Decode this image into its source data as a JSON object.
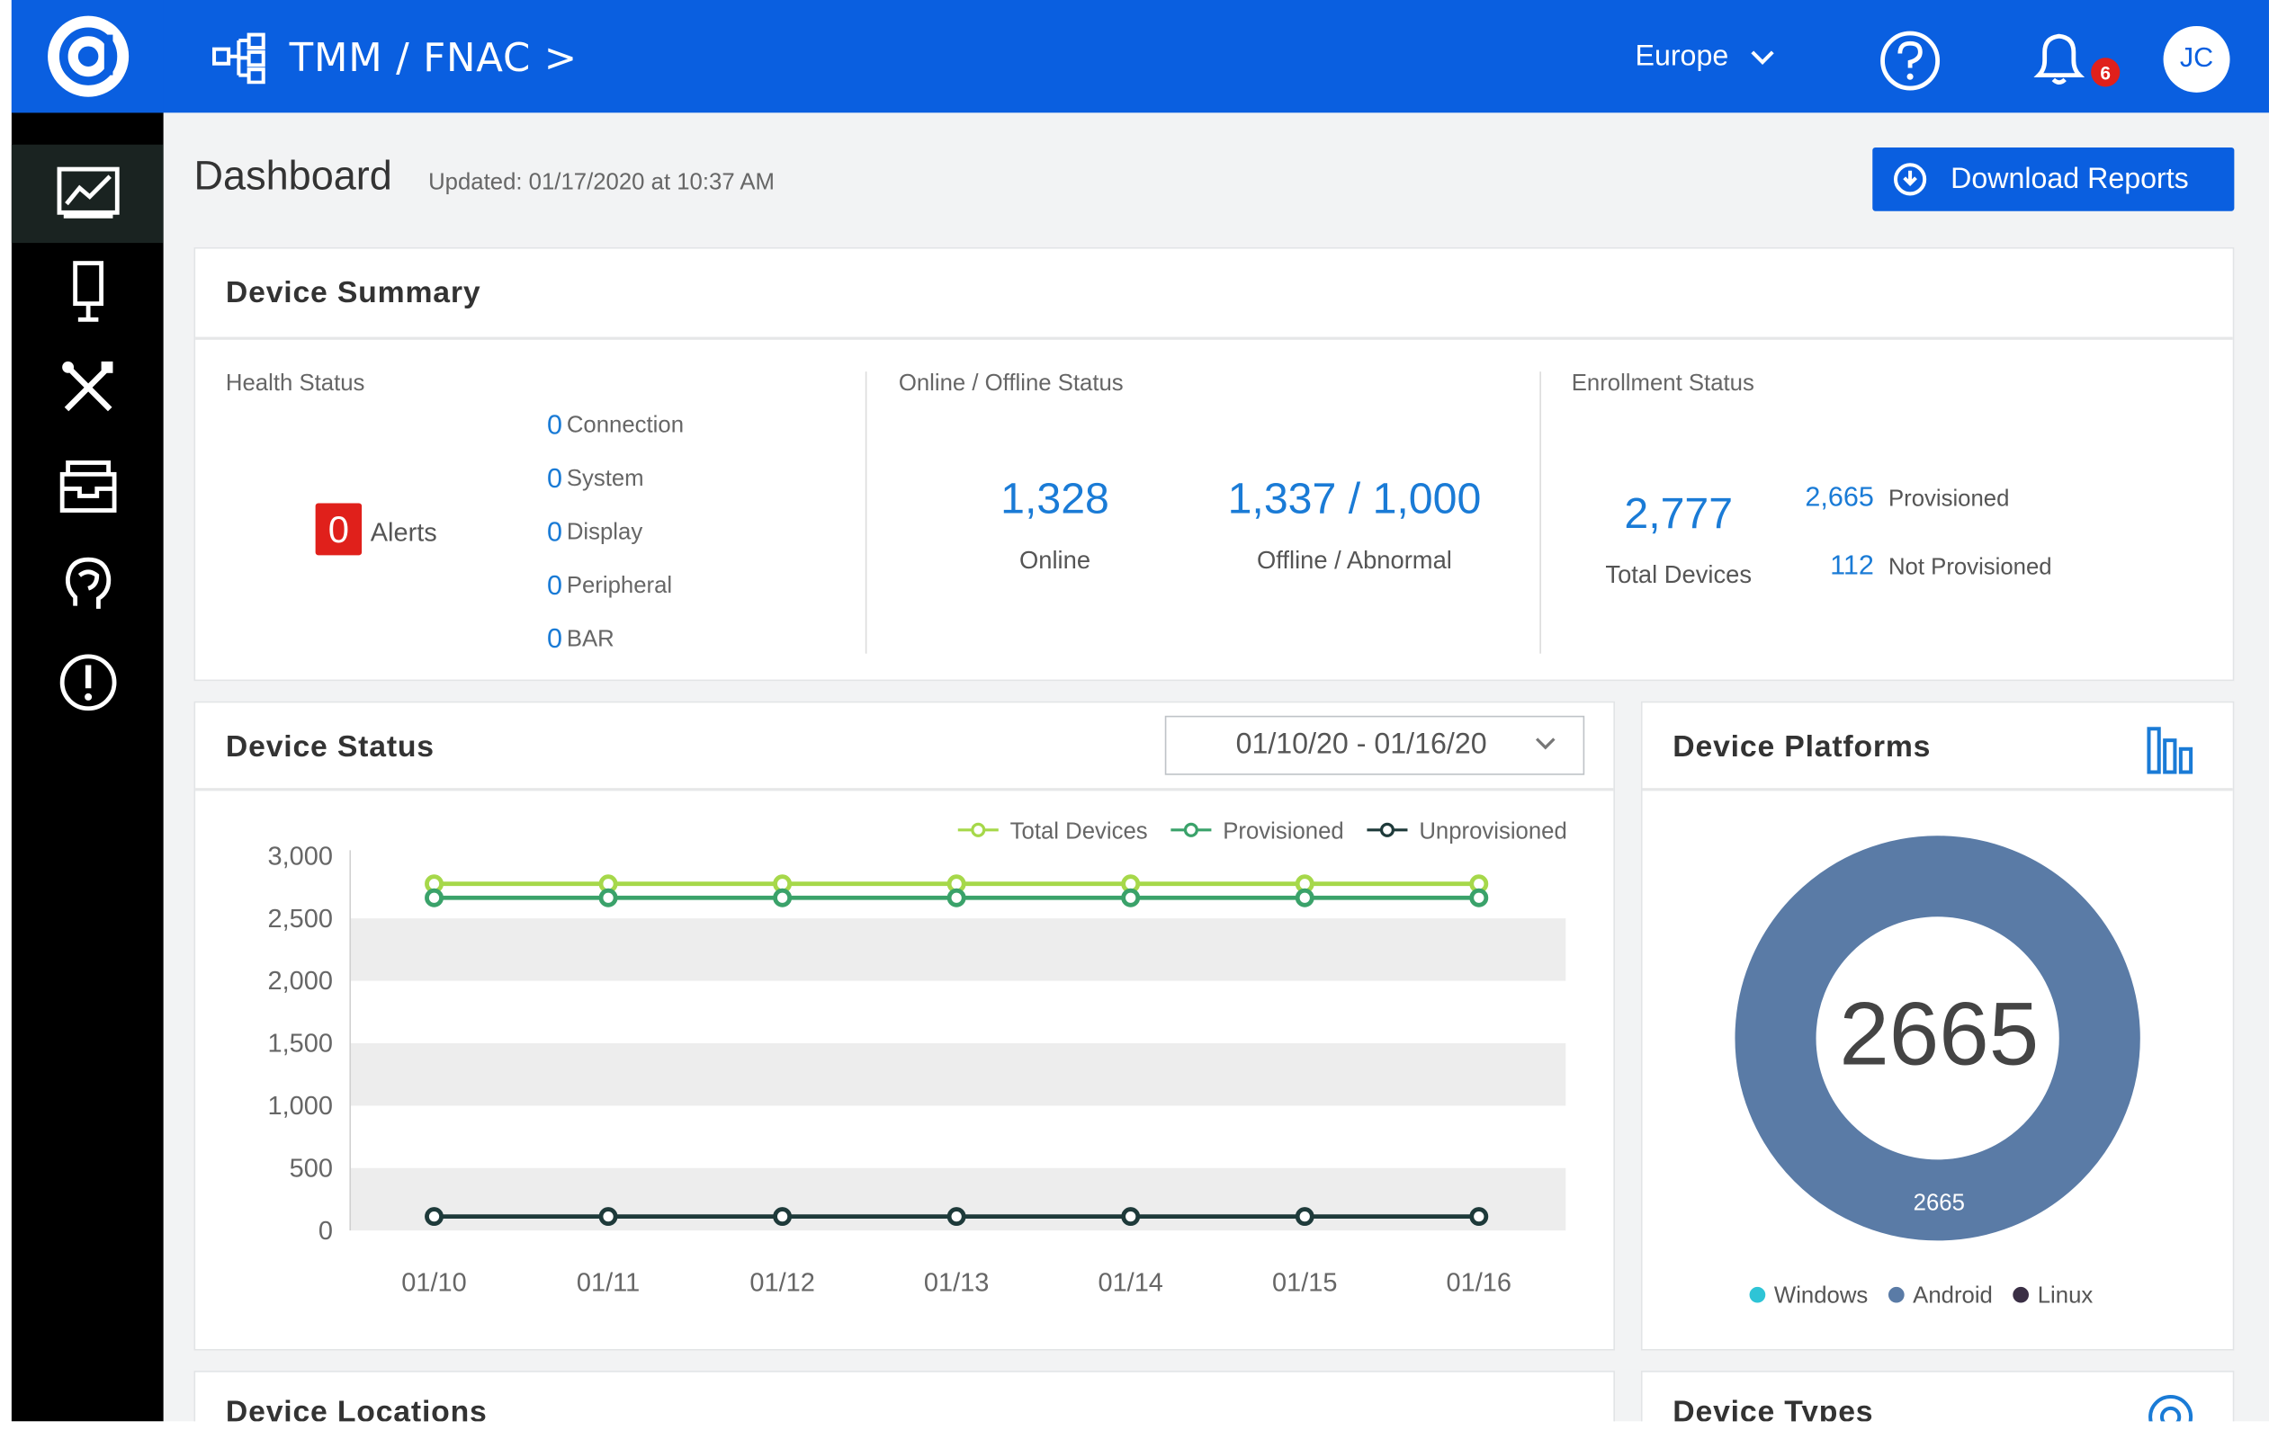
{
  "topbar": {
    "breadcrumb": "TMM / FNAC >",
    "region": "Europe",
    "notification_count": "6",
    "avatar_initials": "JC",
    "brand_color": "#0a5fe0"
  },
  "sidebar": {
    "items": [
      {
        "icon": "dashboard-chart-icon",
        "active": true
      },
      {
        "icon": "device-icon",
        "active": false
      },
      {
        "icon": "tools-icon",
        "active": false
      },
      {
        "icon": "inbox-icon",
        "active": false
      },
      {
        "icon": "support-icon",
        "active": false
      },
      {
        "icon": "alert-icon",
        "active": false
      }
    ]
  },
  "header": {
    "title": "Dashboard",
    "updated": "Updated: 01/17/2020 at 10:37 AM",
    "download_label": "Download Reports"
  },
  "device_summary": {
    "title": "Device Summary",
    "health": {
      "label": "Health Status",
      "alerts_count": "0",
      "alerts_label": "Alerts",
      "items": [
        {
          "count": "0",
          "label": "Connection"
        },
        {
          "count": "0",
          "label": "System"
        },
        {
          "count": "0",
          "label": "Display"
        },
        {
          "count": "0",
          "label": "Peripheral"
        },
        {
          "count": "0",
          "label": "BAR"
        }
      ]
    },
    "online": {
      "label": "Online / Offline Status",
      "online_value": "1,328",
      "online_label": "Online",
      "offline_value": "1,337 / 1,000",
      "offline_label": "Offline / Abnormal"
    },
    "enrollment": {
      "label": "Enrollment Status",
      "total_value": "2,777",
      "total_label": "Total Devices",
      "provisioned_value": "2,665",
      "provisioned_label": "Provisioned",
      "not_provisioned_value": "112",
      "not_provisioned_label": "Not Provisioned"
    }
  },
  "device_status": {
    "title": "Device Status",
    "date_range": "01/10/20 - 01/16/20"
  },
  "device_platforms": {
    "title": "Device Platforms",
    "center_value": "2665",
    "segment_label": "2665",
    "legend": [
      {
        "label": "Windows",
        "color": "#2ec4d6"
      },
      {
        "label": "Android",
        "color": "#5a7ba6"
      },
      {
        "label": "Linux",
        "color": "#3a2f45"
      }
    ]
  },
  "bottom": {
    "locations_title": "Device Locations",
    "types_title": "Device Types"
  },
  "chart_data": {
    "type": "line",
    "categories": [
      "01/10",
      "01/11",
      "01/12",
      "01/13",
      "01/14",
      "01/15",
      "01/16"
    ],
    "y_ticks": [
      "0",
      "500",
      "1,000",
      "1,500",
      "2,000",
      "2,500",
      "3,000"
    ],
    "ylim": [
      0,
      3000
    ],
    "legend_position": "top-right",
    "series": [
      {
        "name": "Total Devices",
        "color": "#a6d84a",
        "values": [
          2777,
          2777,
          2777,
          2777,
          2777,
          2777,
          2777
        ]
      },
      {
        "name": "Provisioned",
        "color": "#3aa26a",
        "values": [
          2665,
          2665,
          2665,
          2665,
          2665,
          2665,
          2665
        ]
      },
      {
        "name": "Unprovisioned",
        "color": "#1e3a3a",
        "values": [
          112,
          112,
          112,
          112,
          112,
          112,
          112
        ]
      }
    ]
  }
}
